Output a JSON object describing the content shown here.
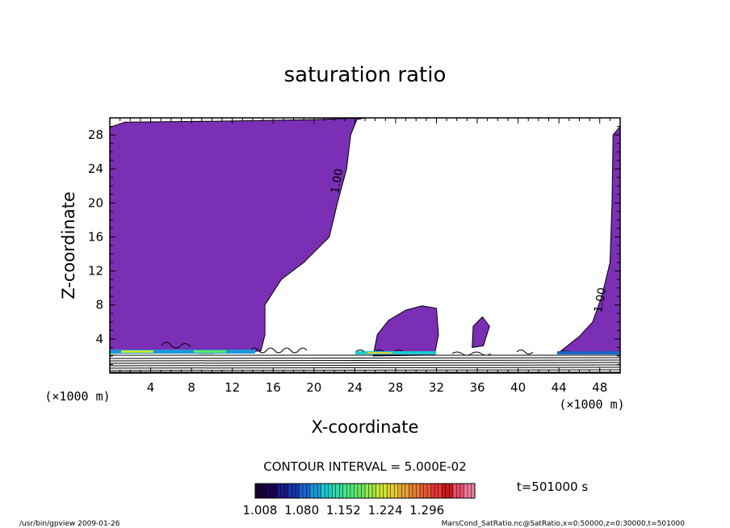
{
  "chart_data": {
    "type": "contour",
    "title": "saturation ratio",
    "xlabel": "X-coordinate",
    "ylabel": "Z-coordinate",
    "x_unit": "(×1000 m)",
    "xlim": [
      0,
      50
    ],
    "ylim": [
      0,
      30
    ],
    "x_ticks": [
      4,
      8,
      12,
      16,
      20,
      24,
      28,
      32,
      36,
      40,
      44,
      48
    ],
    "y_ticks": [
      4,
      8,
      12,
      16,
      20,
      24,
      28
    ],
    "contour_interval_label": "CONTOUR INTERVAL = 5.000E-02",
    "contour_labels": [
      {
        "text": "1.00",
        "x": 22.6,
        "z": 22.5
      },
      {
        "text": "1.00",
        "x": 48.4,
        "z": 8.5
      }
    ],
    "shaded_region_color": "#7b2fb5",
    "supersaturated_regions": [
      {
        "name": "left",
        "outline": [
          [
            0,
            1.2
          ],
          [
            0,
            28.9
          ],
          [
            1.5,
            29.5
          ],
          [
            10,
            29.6
          ],
          [
            20,
            29.8
          ],
          [
            25,
            30
          ],
          [
            24.2,
            29.8
          ],
          [
            23.6,
            28
          ],
          [
            23.2,
            24
          ],
          [
            22.3,
            20
          ],
          [
            21.5,
            16
          ],
          [
            19,
            13
          ],
          [
            16.8,
            11
          ],
          [
            15.2,
            8
          ],
          [
            15.2,
            4.5
          ],
          [
            14.8,
            2.6
          ],
          [
            10,
            2.3
          ],
          [
            4,
            2.4
          ],
          [
            0,
            2.3
          ]
        ]
      },
      {
        "name": "middle-bump",
        "outline": [
          [
            25.8,
            2.0
          ],
          [
            26.2,
            4.5
          ],
          [
            27.3,
            6.2
          ],
          [
            29,
            7.4
          ],
          [
            30.6,
            7.9
          ],
          [
            32,
            7.6
          ],
          [
            32.2,
            4.5
          ],
          [
            31.8,
            2.1
          ]
        ]
      },
      {
        "name": "spike-36",
        "outline": [
          [
            35.5,
            3.0
          ],
          [
            35.6,
            5.5
          ],
          [
            36.5,
            6.6
          ],
          [
            37.2,
            5.5
          ],
          [
            36.6,
            3.2
          ]
        ]
      },
      {
        "name": "right",
        "outline": [
          [
            44.2,
            2.6
          ],
          [
            46,
            4.3
          ],
          [
            47.3,
            6
          ],
          [
            48.2,
            9
          ],
          [
            49,
            13
          ],
          [
            49.2,
            20
          ],
          [
            49.3,
            28
          ],
          [
            50,
            29
          ],
          [
            50,
            2.2
          ]
        ]
      }
    ],
    "colorbar": {
      "ticks": [
        "1.008",
        "1.080",
        "1.152",
        "1.224",
        "1.296"
      ],
      "colors": [
        "#1a0033",
        "#1c0055",
        "#1a1a8a",
        "#1a33b0",
        "#1a66cc",
        "#1a99d9",
        "#1acccc",
        "#33d9a6",
        "#4de680",
        "#66e666",
        "#99e64d",
        "#cce633",
        "#e6cc33",
        "#e6a633",
        "#e68033",
        "#e65a33",
        "#e63333",
        "#cc1a1a",
        "#e64d6b",
        "#f07a9a"
      ]
    },
    "time_label": "t=501000 s"
  },
  "footer": {
    "left": "/usr/bin/gpview   2009-01-26",
    "right": "MarsCond_SatRatio.nc@SatRatio,x=0:50000,z=0:30000,t=501000"
  }
}
